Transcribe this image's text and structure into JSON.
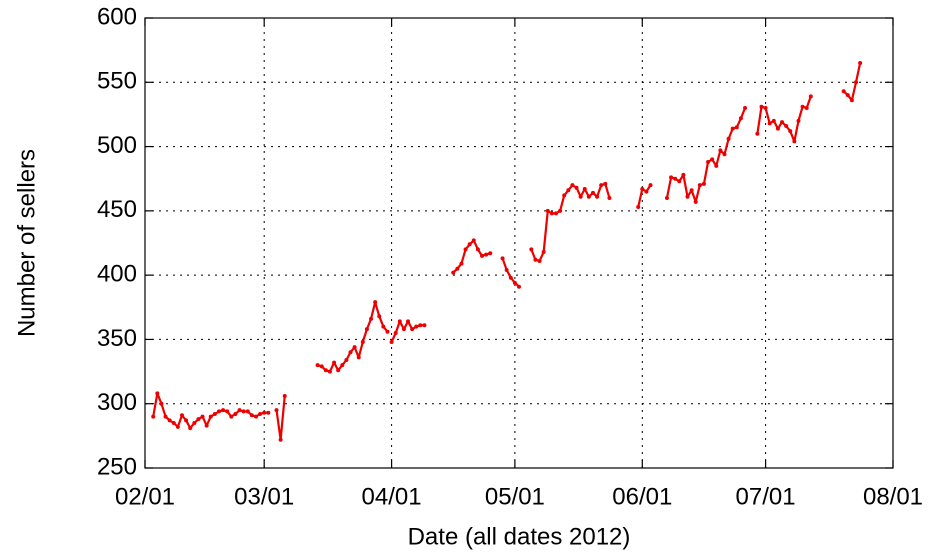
{
  "chart_data": {
    "type": "line",
    "xlabel": "Date (all dates 2012)",
    "ylabel": "Number of sellers",
    "xlim": [
      "2012-02-01",
      "2012-08-01"
    ],
    "xticks": [
      {
        "value": "2012-02-01",
        "label": "02/01"
      },
      {
        "value": "2012-03-01",
        "label": "03/01"
      },
      {
        "value": "2012-04-01",
        "label": "04/01"
      },
      {
        "value": "2012-05-01",
        "label": "05/01"
      },
      {
        "value": "2012-06-01",
        "label": "06/01"
      },
      {
        "value": "2012-07-01",
        "label": "07/01"
      },
      {
        "value": "2012-08-01",
        "label": "08/01"
      }
    ],
    "ylim": [
      250,
      600
    ],
    "yticks": [
      250,
      300,
      350,
      400,
      450,
      500,
      550,
      600
    ],
    "grid": true,
    "series": [
      {
        "color": "#ee0000",
        "x": [
          "2012-02-03",
          "2012-02-04",
          "2012-02-05",
          "2012-02-06",
          "2012-02-07",
          "2012-02-08",
          "2012-02-09",
          "2012-02-10",
          "2012-02-11",
          "2012-02-12",
          "2012-02-13",
          "2012-02-14",
          "2012-02-15",
          "2012-02-16",
          "2012-02-17",
          "2012-02-18",
          "2012-02-19",
          "2012-02-20",
          "2012-02-21",
          "2012-02-22",
          "2012-02-23",
          "2012-02-24",
          "2012-02-25",
          "2012-02-26",
          "2012-02-27",
          "2012-02-28",
          "2012-02-29",
          "2012-03-01",
          "2012-03-02",
          null,
          "2012-03-04",
          "2012-03-05",
          "2012-03-06",
          null,
          "2012-03-14",
          "2012-03-15",
          "2012-03-16",
          "2012-03-17",
          "2012-03-18",
          "2012-03-19",
          "2012-03-20",
          "2012-03-21",
          "2012-03-22",
          "2012-03-23",
          "2012-03-24",
          "2012-03-25",
          "2012-03-26",
          "2012-03-27",
          "2012-03-28",
          "2012-03-29",
          "2012-03-30",
          "2012-03-31",
          null,
          "2012-04-01",
          "2012-04-02",
          "2012-04-03",
          "2012-04-04",
          "2012-04-05",
          "2012-04-06",
          "2012-04-07",
          "2012-04-08",
          "2012-04-09",
          null,
          "2012-04-16",
          "2012-04-17",
          "2012-04-18",
          "2012-04-19",
          "2012-04-20",
          "2012-04-21",
          "2012-04-22",
          "2012-04-23",
          "2012-04-24",
          "2012-04-25",
          null,
          "2012-04-28",
          "2012-04-29",
          "2012-04-30",
          "2012-05-01",
          "2012-05-02",
          null,
          "2012-05-05",
          "2012-05-06",
          "2012-05-07",
          "2012-05-08",
          "2012-05-09",
          "2012-05-10",
          "2012-05-11",
          "2012-05-12",
          "2012-05-13",
          "2012-05-14",
          "2012-05-15",
          "2012-05-16",
          "2012-05-17",
          "2012-05-18",
          "2012-05-19",
          "2012-05-20",
          "2012-05-21",
          "2012-05-22",
          "2012-05-23",
          "2012-05-24",
          null,
          "2012-05-31",
          "2012-06-01",
          "2012-06-02",
          "2012-06-03",
          null,
          "2012-06-07",
          "2012-06-08",
          "2012-06-09",
          "2012-06-10",
          "2012-06-11",
          "2012-06-12",
          "2012-06-13",
          "2012-06-14",
          "2012-06-15",
          "2012-06-16",
          "2012-06-17",
          "2012-06-18",
          "2012-06-19",
          "2012-06-20",
          "2012-06-21",
          "2012-06-22",
          "2012-06-23",
          "2012-06-24",
          "2012-06-25",
          "2012-06-26",
          null,
          "2012-06-29",
          "2012-06-30",
          "2012-07-01",
          "2012-07-02",
          "2012-07-03",
          "2012-07-04",
          "2012-07-05",
          "2012-07-06",
          "2012-07-07",
          "2012-07-08",
          "2012-07-09",
          "2012-07-10",
          "2012-07-11",
          "2012-07-12",
          null,
          "2012-07-20",
          "2012-07-21",
          "2012-07-22",
          "2012-07-23",
          "2012-07-24"
        ],
        "values": [
          290,
          308,
          300,
          290,
          287,
          285,
          282,
          291,
          287,
          281,
          285,
          288,
          290,
          283,
          290,
          292,
          294,
          295,
          294,
          290,
          292,
          295,
          294,
          294,
          291,
          290,
          292,
          293,
          293,
          null,
          295,
          272,
          306,
          null,
          330,
          329,
          326,
          325,
          332,
          326,
          330,
          334,
          340,
          344,
          336,
          348,
          358,
          366,
          379,
          368,
          360,
          356,
          null,
          348,
          355,
          364,
          358,
          364,
          358,
          360,
          361,
          361,
          null,
          402,
          405,
          409,
          420,
          424,
          427,
          420,
          415,
          416,
          417,
          null,
          413,
          404,
          398,
          394,
          391,
          null,
          420,
          412,
          411,
          418,
          450,
          448,
          448,
          450,
          462,
          466,
          470,
          468,
          461,
          467,
          461,
          464,
          461,
          470,
          471,
          460,
          null,
          453,
          467,
          465,
          470,
          null,
          460,
          476,
          475,
          473,
          478,
          461,
          466,
          457,
          470,
          471,
          488,
          490,
          485,
          497,
          494,
          506,
          514,
          515,
          522,
          530,
          null,
          510,
          531,
          530,
          518,
          520,
          514,
          519,
          516,
          512,
          504,
          520,
          531,
          530,
          539,
          null,
          543,
          540,
          536,
          550,
          565
        ]
      }
    ]
  }
}
